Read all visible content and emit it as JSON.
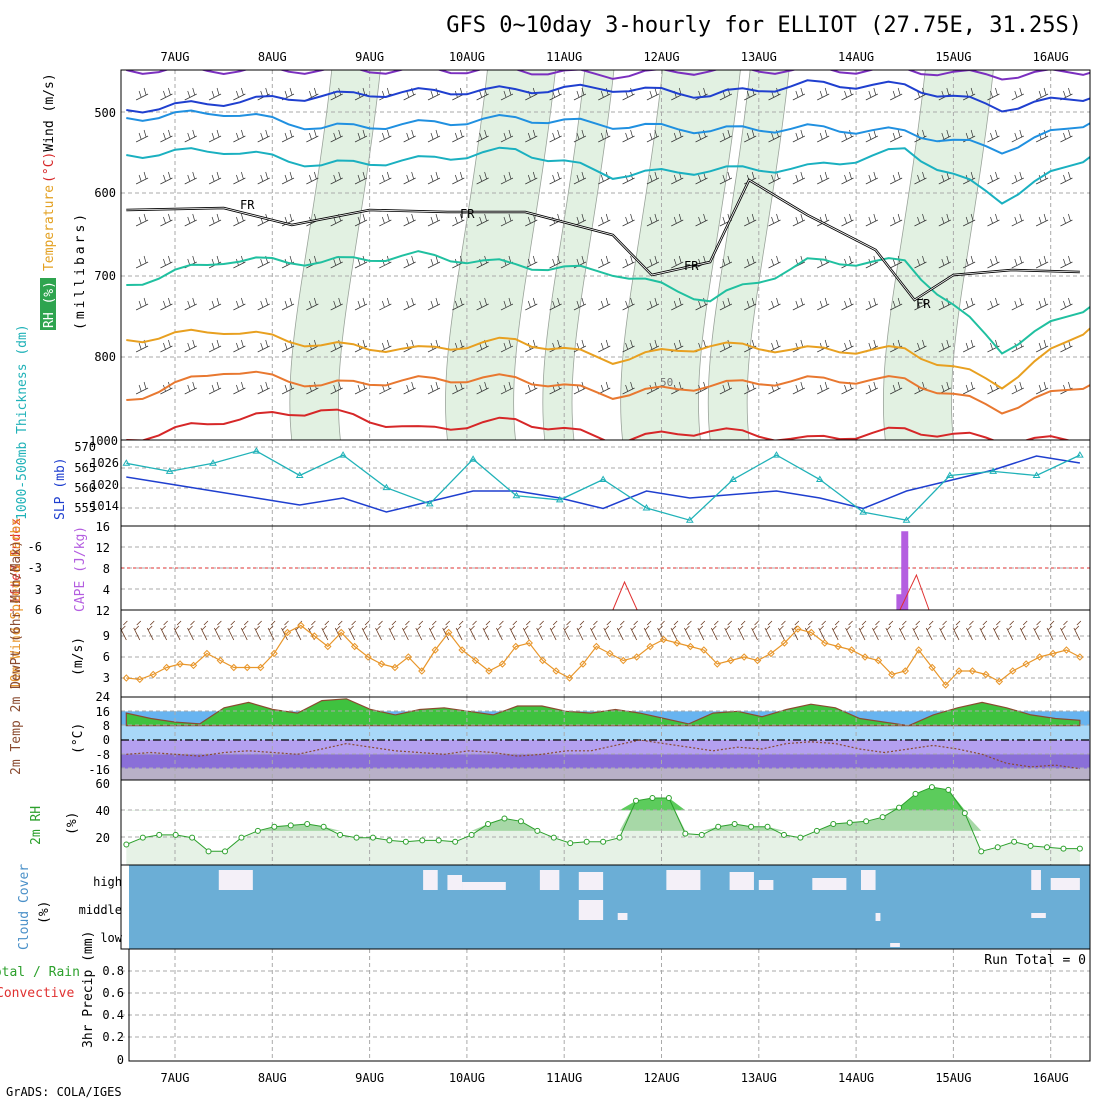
{
  "header": {
    "title": "GFS 0~10day 3-hourly for ELLIOT (27.75E, 31.25S)",
    "credit": "GrADS: COLA/IGES"
  },
  "x_axis": {
    "date_labels": [
      "7AUG",
      "8AUG",
      "9AUG",
      "10AUG",
      "11AUG",
      "12AUG",
      "13AUG",
      "14AUG",
      "15AUG",
      "16AUG"
    ]
  },
  "panels": {
    "upper_air": {
      "label_parts": [
        {
          "text": "RH (%)",
          "color": "#ffffff",
          "bg": "#2ea44f"
        },
        {
          "text": "Temperature",
          "color": "#e3a020"
        },
        {
          "text": "(°C)",
          "color": "#d62728"
        },
        {
          "text": "Wind (m/s)",
          "color": "#000000"
        }
      ],
      "unit_label": "(millibars)",
      "y_ticks": [
        "500",
        "600",
        "700",
        "800"
      ],
      "bottom_tick": "1000",
      "freezing_label": "FR",
      "rh_label": "50"
    },
    "thickness_slp": {
      "left_label": "1000-500mb Thickness (dm)",
      "right_label": "SLP (mb)",
      "left_ticks": [
        "570",
        "565",
        "560",
        "555"
      ],
      "right_ticks": [
        "1026",
        "1020",
        "1014"
      ]
    },
    "cape_li": {
      "left_label": "Lifted Index",
      "right_label": "CAPE (J/kg)",
      "li_ticks": [
        "-6",
        "-3",
        "0",
        "3",
        "6"
      ],
      "cape_ticks": [
        "16",
        "12",
        "8",
        "4",
        "12"
      ]
    },
    "wind10m": {
      "label": "10m Wind Speed & Barbs",
      "unit": "(m/s)",
      "y_ticks": [
        "9",
        "6",
        "3"
      ]
    },
    "temp2m": {
      "label": "2m Temp 2m DewPt (6hr Min/Max)",
      "unit": "(°C)",
      "y_ticks": [
        "24",
        "16",
        "8",
        "0",
        "-8",
        "-16"
      ]
    },
    "rh2m": {
      "label": "2m RH",
      "unit": "(%)",
      "y_ticks": [
        "60",
        "40",
        "20"
      ]
    },
    "cloud": {
      "label": "Cloud Cover",
      "unit": "(%)",
      "levels": [
        "high",
        "middle",
        "low"
      ]
    },
    "precip": {
      "label_total": "Total / Rain",
      "label_conv": "Convective",
      "unit": "3hr Precip (mm)",
      "run_total": "Run Total = 0",
      "y_ticks": [
        "0.8",
        "0.6",
        "0.4",
        "0.2",
        "0"
      ]
    }
  },
  "colors": {
    "slp": "#1f3fcf",
    "thickness": "#20b2b8",
    "cape": "#b45ee0",
    "lifted_index": "#e03030",
    "wind": "#e8962a",
    "rh": "#2ca02c",
    "cloud_sky": "#6baed6"
  },
  "chart_data": {
    "type": "meteogram",
    "x": [
      "7AUG",
      "8AUG",
      "9AUG",
      "10AUG",
      "11AUG",
      "12AUG",
      "13AUG",
      "14AUG",
      "15AUG",
      "16AUG"
    ],
    "thickness_dm": [
      566,
      564,
      566,
      569,
      563,
      568,
      560,
      556,
      567,
      558,
      557,
      562,
      555,
      552,
      562,
      568,
      562,
      554,
      552,
      563,
      564,
      563,
      568
    ],
    "slp_mb": [
      1022,
      1020,
      1018,
      1016,
      1014,
      1016,
      1012,
      1015,
      1018,
      1018,
      1016,
      1013,
      1018,
      1016,
      1017,
      1018,
      1016,
      1013,
      1018,
      1021,
      1024,
      1028,
      1026
    ],
    "cape_jkg": [
      {
        "day": 14.45,
        "value": 3
      },
      {
        "day": 14.5,
        "value": 15
      }
    ],
    "lifted_index": [
      {
        "day": 11.5,
        "value": 6
      },
      {
        "day": 11.62,
        "value": 2
      },
      {
        "day": 11.75,
        "value": 6
      },
      {
        "day": 14.45,
        "value": 6
      },
      {
        "day": 14.62,
        "value": 1
      },
      {
        "day": 14.75,
        "value": 6
      }
    ],
    "wind10m_ms": [
      3.0,
      2.8,
      3.5,
      4.5,
      5.0,
      4.8,
      6.5,
      5.5,
      4.5,
      4.5,
      4.5,
      6.5,
      9.5,
      10.5,
      9.0,
      7.5,
      9.5,
      7.5,
      6.0,
      5.0,
      4.5,
      6.0,
      4.0,
      7.0,
      9.5,
      7.0,
      5.5,
      4.0,
      5.0,
      7.5,
      8.0,
      5.5,
      4.0,
      3.0,
      5.0,
      7.5,
      6.5,
      5.5,
      6.0,
      7.5,
      8.5,
      8.0,
      7.5,
      7.0,
      5.0,
      5.5,
      6.0,
      5.5,
      6.5,
      8.0,
      10.0,
      9.5,
      8.0,
      7.5,
      7.0,
      6.0,
      5.5,
      3.5,
      4.0,
      7.0,
      4.5,
      2.0,
      4.0,
      4.0,
      3.5,
      2.5,
      4.0,
      5.0,
      6.0,
      6.5,
      7.0,
      6.0
    ],
    "temp2m_max_c": [
      15,
      12,
      10,
      9,
      18,
      21,
      17,
      15,
      22,
      23,
      17,
      14,
      17,
      18,
      16,
      14,
      19,
      19,
      16,
      15,
      17,
      15,
      12,
      9,
      15,
      16,
      13,
      17,
      20,
      18,
      12,
      10,
      8,
      14,
      18,
      21,
      18,
      14,
      12,
      11
    ],
    "dewpt2m_c": [
      -8,
      -7,
      -8,
      -9,
      -7,
      -6,
      -7,
      -8,
      -5,
      -2,
      -4,
      -6,
      -7,
      -8,
      -6,
      -7,
      -9,
      -8,
      -6,
      -6,
      -3,
      0,
      -2,
      -4,
      -6,
      -4,
      -5,
      -2,
      -1,
      -2,
      -5,
      -7,
      -5,
      -3,
      -5,
      -8,
      -13,
      -15,
      -14,
      -16
    ],
    "rh2m_pct": [
      15,
      20,
      22,
      22,
      20,
      10,
      10,
      20,
      25,
      28,
      29,
      30,
      28,
      22,
      20,
      20,
      18,
      17,
      18,
      18,
      17,
      22,
      30,
      34,
      32,
      25,
      20,
      16,
      17,
      17,
      20,
      47,
      49,
      49,
      23,
      22,
      28,
      30,
      28,
      28,
      22,
      20,
      25,
      30,
      31,
      32,
      35,
      42,
      52,
      57,
      55,
      38,
      10,
      13,
      17,
      14,
      13,
      12,
      12
    ],
    "precip_3hr_mm": [],
    "run_total_mm": 0
  }
}
